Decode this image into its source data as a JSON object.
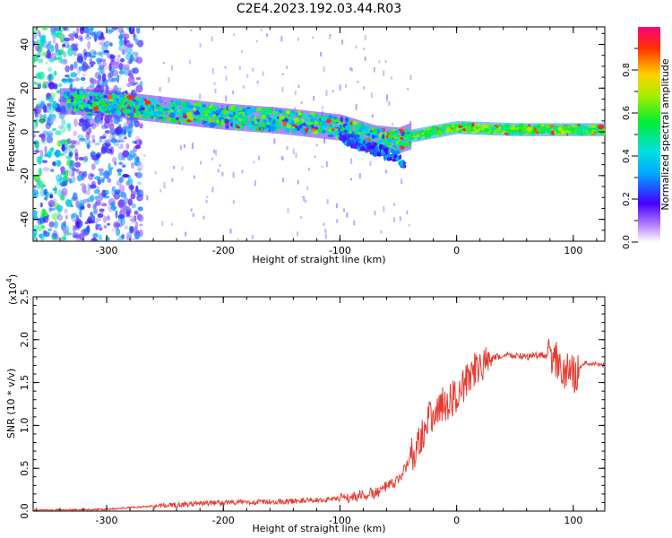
{
  "title": "C2E4.2023.192.03.44.R03",
  "colorbar": {
    "label": "Normalized spectral amplitude",
    "ticks": [
      "0.0",
      "0.2",
      "0.4",
      "0.6",
      "0.8"
    ],
    "range": [
      0,
      1
    ]
  },
  "chart_data": [
    {
      "type": "heatmap",
      "xlabel": "Height of straight line (km)",
      "ylabel": "Frequency (Hz)",
      "xlim": [
        -363,
        127
      ],
      "ylim": [
        -50,
        48
      ],
      "xticks": [
        "-300",
        "-200",
        "-100",
        "0",
        "100"
      ],
      "yticks": [
        "40",
        "20",
        "0",
        "-20",
        "-40"
      ],
      "ridge": {
        "x": [
          -330,
          -300,
          -250,
          -200,
          -150,
          -100,
          -70,
          -50,
          -40,
          -30,
          -10,
          0,
          50,
          100,
          127
        ],
        "frequency": [
          14,
          13,
          10,
          7,
          5,
          2,
          -3,
          -4,
          -2,
          -1,
          1,
          2,
          1,
          1,
          1
        ]
      },
      "lower_branch": {
        "x": [
          -100,
          -80,
          -65,
          -50,
          -45
        ],
        "frequency": [
          -2,
          -6,
          -9,
          -12,
          -15
        ]
      },
      "noise_region_x": [
        -363,
        -270
      ]
    },
    {
      "type": "line",
      "xlabel": "Height of straight line (km)",
      "ylabel": "SNR (10 * v/v)",
      "multiplier": "(x10",
      "multiplier_exp": "4",
      "multiplier_close": ")",
      "xlim": [
        -363,
        127
      ],
      "ylim": [
        0,
        2.5
      ],
      "xticks": [
        "-300",
        "-200",
        "-100",
        "0",
        "100"
      ],
      "yticks": [
        "0.0",
        "0.5",
        "1.0",
        "1.5",
        "2.0",
        "2.5"
      ],
      "color": "#e83a30",
      "x": [
        -363,
        -300,
        -260,
        -200,
        -150,
        -100,
        -70,
        -50,
        -35,
        -25,
        -15,
        -5,
        5,
        15,
        25,
        35,
        45,
        60,
        75,
        85,
        90,
        95,
        100,
        110,
        127
      ],
      "y": [
        0.01,
        0.02,
        0.06,
        0.1,
        0.11,
        0.14,
        0.21,
        0.35,
        0.75,
        1.05,
        1.2,
        1.3,
        1.45,
        1.62,
        1.74,
        1.8,
        1.82,
        1.8,
        1.82,
        1.78,
        1.55,
        1.7,
        1.58,
        1.73,
        1.7
      ]
    }
  ]
}
